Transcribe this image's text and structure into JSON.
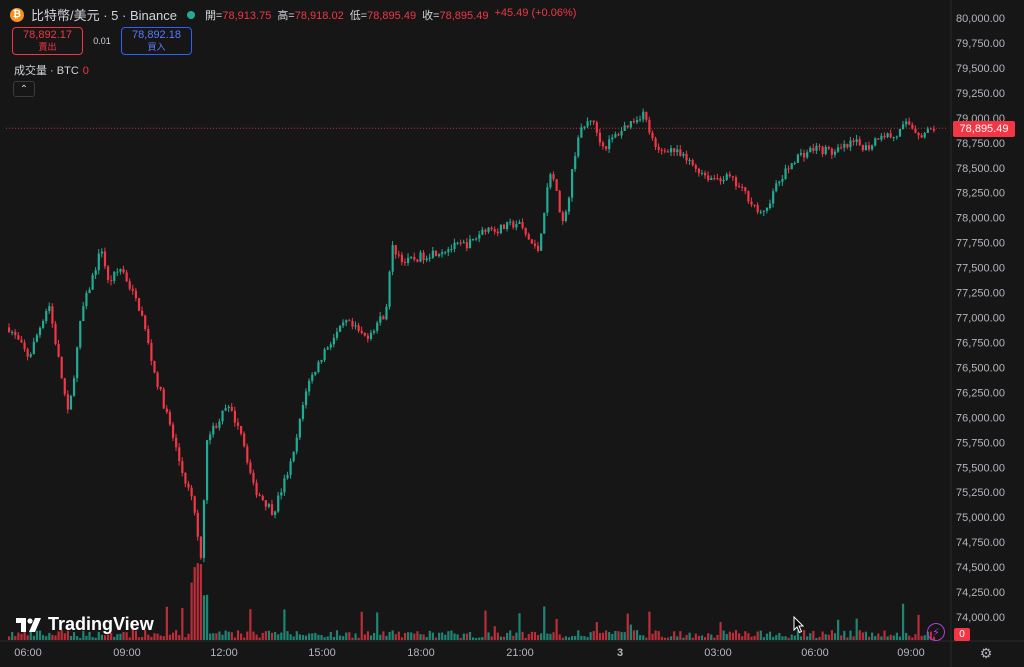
{
  "header": {
    "coin_glyph": "₿",
    "symbol": "比特幣/美元 · 5 · Binance",
    "open_label": "開=",
    "open": "78,913.75",
    "high_label": "高=",
    "high": "78,918.02",
    "low_label": "低=",
    "low": "78,895.49",
    "close_label": "收=",
    "close": "78,895.49",
    "change": "+45.49 (+0.06%)"
  },
  "trade": {
    "sell_price": "78,892.17",
    "sell_label": "賣出",
    "spread": "0.01",
    "buy_price": "78,892.18",
    "buy_label": "買入"
  },
  "volume_indicator": {
    "label": "成交量 · BTC",
    "value": "0"
  },
  "collapse_glyph": "⌃",
  "price_tag": "78,895.49",
  "volume_tag": "0",
  "logo_text": "TradingView",
  "price_axis": [
    "80,000.00",
    "79,750.00",
    "79,500.00",
    "79,250.00",
    "79,000.00",
    "78,750.00",
    "78,500.00",
    "78,250.00",
    "78,000.00",
    "77,750.00",
    "77,500.00",
    "77,250.00",
    "77,000.00",
    "76,750.00",
    "76,500.00",
    "76,250.00",
    "76,000.00",
    "75,750.00",
    "75,500.00",
    "75,250.00",
    "75,000.00",
    "74,750.00",
    "74,500.00",
    "74,250.00",
    "74,000.00"
  ],
  "time_axis": [
    "06:00",
    "09:00",
    "12:00",
    "15:00",
    "18:00",
    "21:00",
    "3",
    "03:00",
    "06:00",
    "09:00"
  ],
  "colors": {
    "up": "#22ab94",
    "down": "#f23645",
    "background": "#161616"
  },
  "icons": {
    "bolt": "lightning-icon",
    "gear": "gear-icon",
    "cursor": "cursor-icon"
  },
  "chart_data": {
    "type": "candlestick",
    "ylim": [
      73900,
      80080
    ],
    "last_price": 78895.49,
    "close_path": [
      [
        0,
        76900
      ],
      [
        3,
        76600
      ],
      [
        6,
        77150
      ],
      [
        9,
        76000
      ],
      [
        11,
        77050
      ],
      [
        14,
        77700
      ],
      [
        15,
        77350
      ],
      [
        17,
        77500
      ],
      [
        20,
        77050
      ],
      [
        22,
        76450
      ],
      [
        24,
        76000
      ],
      [
        26,
        75500
      ],
      [
        28,
        75100
      ],
      [
        29,
        74600
      ],
      [
        30,
        75800
      ],
      [
        33,
        76100
      ],
      [
        35,
        75900
      ],
      [
        37,
        75300
      ],
      [
        40,
        75050
      ],
      [
        43,
        75600
      ],
      [
        45,
        76300
      ],
      [
        48,
        76700
      ],
      [
        51,
        76950
      ],
      [
        54,
        76800
      ],
      [
        57,
        77050
      ],
      [
        58,
        77700
      ],
      [
        60,
        77550
      ],
      [
        64,
        77650
      ],
      [
        67,
        77700
      ],
      [
        70,
        77750
      ],
      [
        72,
        77900
      ],
      [
        74,
        77880
      ],
      [
        77,
        77950
      ],
      [
        80,
        77650
      ],
      [
        82,
        78500
      ],
      [
        84,
        77900
      ],
      [
        86,
        78800
      ],
      [
        88,
        79000
      ],
      [
        90,
        78700
      ],
      [
        93,
        78900
      ],
      [
        96,
        79050
      ],
      [
        98,
        78650
      ],
      [
        100,
        78700
      ],
      [
        103,
        78550
      ],
      [
        106,
        78400
      ],
      [
        109,
        78400
      ],
      [
        112,
        78200
      ],
      [
        114,
        78000
      ],
      [
        116,
        78300
      ],
      [
        119,
        78600
      ],
      [
        122,
        78700
      ],
      [
        125,
        78650
      ],
      [
        128,
        78750
      ],
      [
        130,
        78700
      ],
      [
        132,
        78850
      ],
      [
        134,
        78800
      ],
      [
        136,
        78950
      ],
      [
        138,
        78830
      ],
      [
        140,
        78895.49
      ]
    ]
  }
}
